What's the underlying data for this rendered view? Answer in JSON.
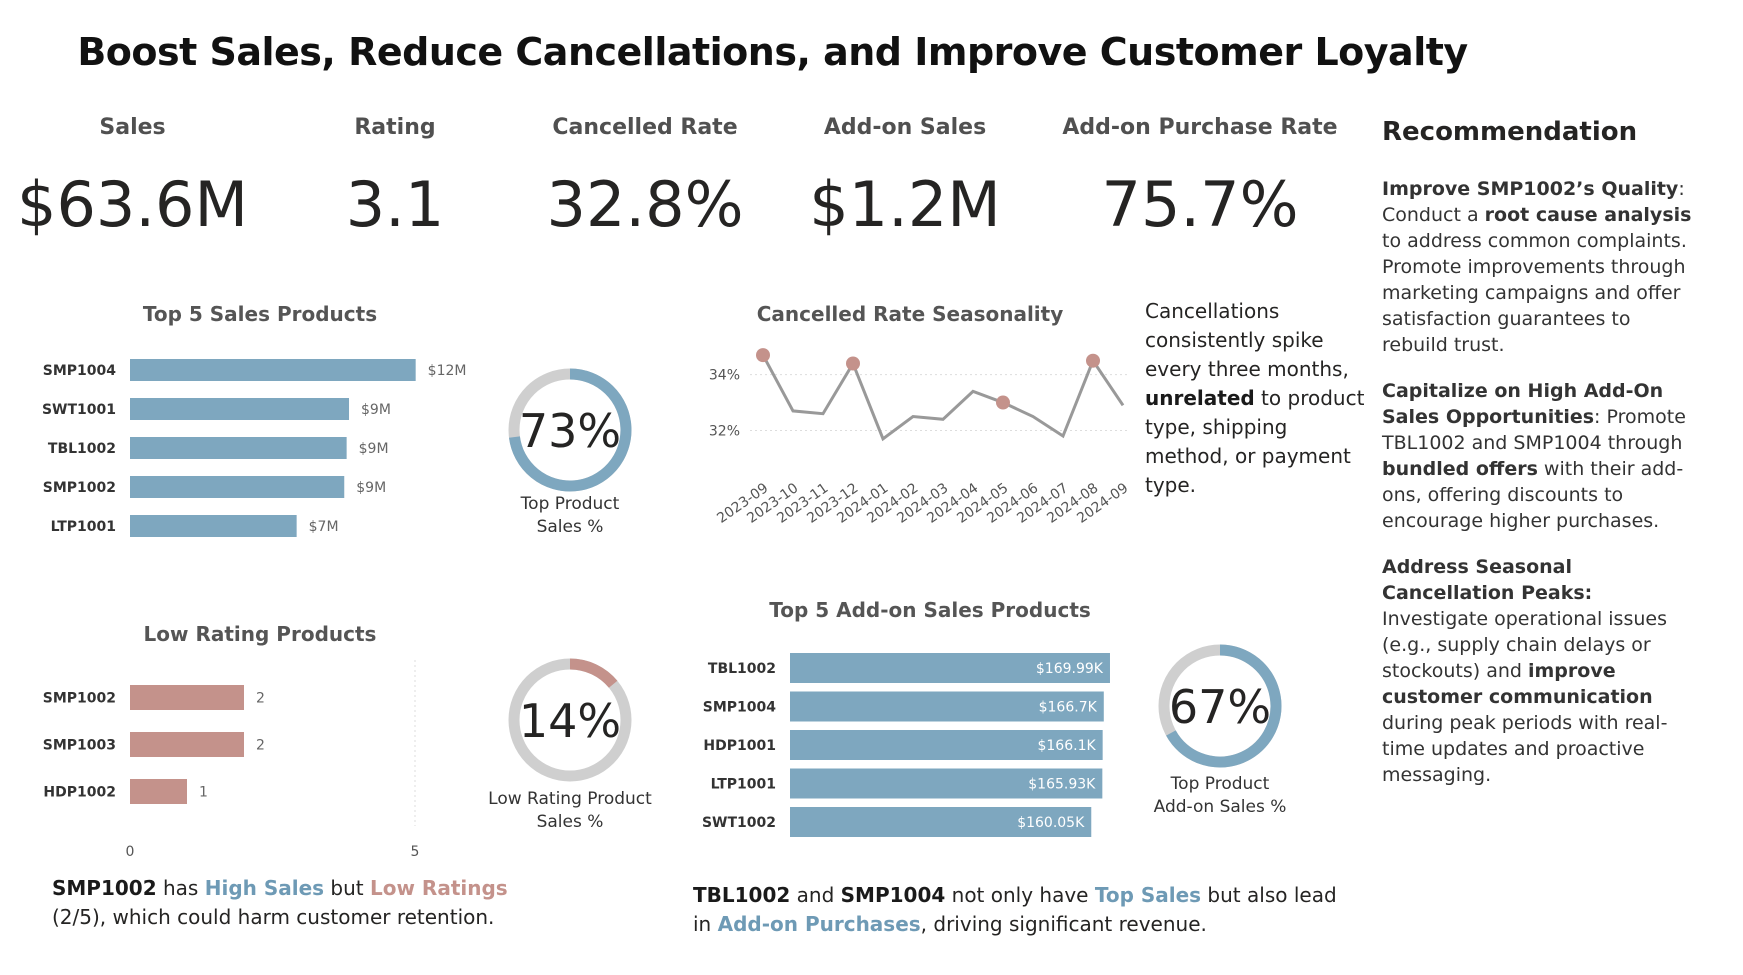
{
  "title": "Boost Sales, Reduce Cancellations, and Improve Customer Loyalty",
  "kpis": [
    {
      "label": "Sales",
      "value": "$63.6M"
    },
    {
      "label": "Rating",
      "value": "3.1"
    },
    {
      "label": "Cancelled Rate",
      "value": "32.8%"
    },
    {
      "label": "Add-on Sales",
      "value": "$1.2M"
    },
    {
      "label": "Add-on Purchase Rate",
      "value": "75.7%"
    }
  ],
  "colors": {
    "blue": "#7ea7bf",
    "rose": "#c4928b",
    "grey": "#cfcfcf",
    "line": "#999999"
  },
  "recommendation": {
    "title": "Recommendation",
    "items": [
      {
        "lead": "Improve SMP1002’s Quality",
        "p1": ": Conduct a ",
        "b1": "root cause analysis",
        "p2": " to address common complaints. Promote improvements through marketing campaigns and offer satisfaction guarantees to rebuild trust."
      },
      {
        "lead": "Capitalize on High Add-On Sales Opportunities",
        "p1": ": Promote TBL1002 and SMP1004 through ",
        "b1": "bundled offers",
        "p2": " with their add-ons, offering discounts to encourage higher purchases."
      },
      {
        "lead": "Address Seasonal Cancellation Peaks:",
        "p1": " Investigate operational issues (e.g., supply chain delays or stockouts) and ",
        "b1": "improve customer communication",
        "p2": " during peak periods with real-time updates and proactive messaging."
      }
    ]
  },
  "seasonality_note": {
    "p1": "Cancellations consistently spike every three months, ",
    "b1": "unrelated",
    "p2": " to product type, shipping method, or payment type."
  },
  "bottom_left_note": {
    "b1": "SMP1002",
    "t1": " has ",
    "blue1": "High Sales",
    "t2": " but ",
    "rose1": "Low Ratings",
    "t3": " (2/5), which could harm customer retention."
  },
  "bottom_mid_note": {
    "b1": "TBL1002",
    "t1": " and ",
    "b2": "SMP1004",
    "t2": " not only have ",
    "blue1": "Top Sales",
    "t3": " but also lead in ",
    "blue2": "Add-on Purchases",
    "t4": ", driving significant revenue."
  },
  "chart_data": [
    {
      "id": "top-sales",
      "type": "bar",
      "title": "Top 5 Sales Products",
      "categories": [
        "SMP1004",
        "SWT1001",
        "TBL1002",
        "SMP1002",
        "LTP1001"
      ],
      "values": [
        12.0,
        9.2,
        9.1,
        9.0,
        7.0
      ],
      "labels": [
        "$12M",
        "$9M",
        "$9M",
        "$9M",
        "$7M"
      ],
      "xlim": [
        0,
        13.4
      ]
    },
    {
      "id": "top-sales-donut",
      "type": "pie",
      "value": 73,
      "label": "73%",
      "caption": "Top Product Sales %"
    },
    {
      "id": "cancel-seasonality",
      "type": "line",
      "title": "Cancelled Rate Seasonality",
      "x": [
        "2023-09",
        "2023-10",
        "2023-11",
        "2023-12",
        "2024-01",
        "2024-02",
        "2024-03",
        "2024-04",
        "2024-05",
        "2024-06",
        "2024-07",
        "2024-08",
        "2024-09"
      ],
      "values": [
        34.7,
        32.7,
        32.6,
        34.4,
        31.7,
        32.5,
        32.4,
        33.4,
        33.0,
        32.5,
        31.8,
        34.5,
        32.9
      ],
      "highlight": [
        0,
        3,
        8,
        11
      ],
      "yticks": [
        32,
        34
      ],
      "ytick_labels": [
        "32%",
        "34%"
      ],
      "ylim": [
        31.3,
        35.6
      ]
    },
    {
      "id": "low-rating",
      "type": "bar",
      "title": "Low Rating Products",
      "categories": [
        "SMP1002",
        "SMP1003",
        "HDP1002"
      ],
      "values": [
        2,
        2,
        1
      ],
      "labels": [
        "2",
        "2",
        "1"
      ],
      "xlim": [
        0,
        5
      ],
      "xticks": [
        0,
        5
      ]
    },
    {
      "id": "low-rating-donut",
      "type": "pie",
      "value": 14,
      "label": "14%",
      "caption": "Low Rating Product Sales %"
    },
    {
      "id": "top-addon",
      "type": "bar",
      "title": "Top 5 Add-on Sales Products",
      "categories": [
        "TBL1002",
        "SMP1004",
        "HDP1001",
        "LTP1001",
        "SWT1002"
      ],
      "values": [
        169.99,
        166.7,
        166.1,
        165.93,
        160.05
      ],
      "labels": [
        "$169.99K",
        "$166.7K",
        "$166.1K",
        "$165.93K",
        "$160.05K"
      ],
      "xlim": [
        0,
        170
      ]
    },
    {
      "id": "top-addon-donut",
      "type": "pie",
      "value": 67,
      "label": "67%",
      "caption": "Top Product Add-on Sales %"
    }
  ]
}
